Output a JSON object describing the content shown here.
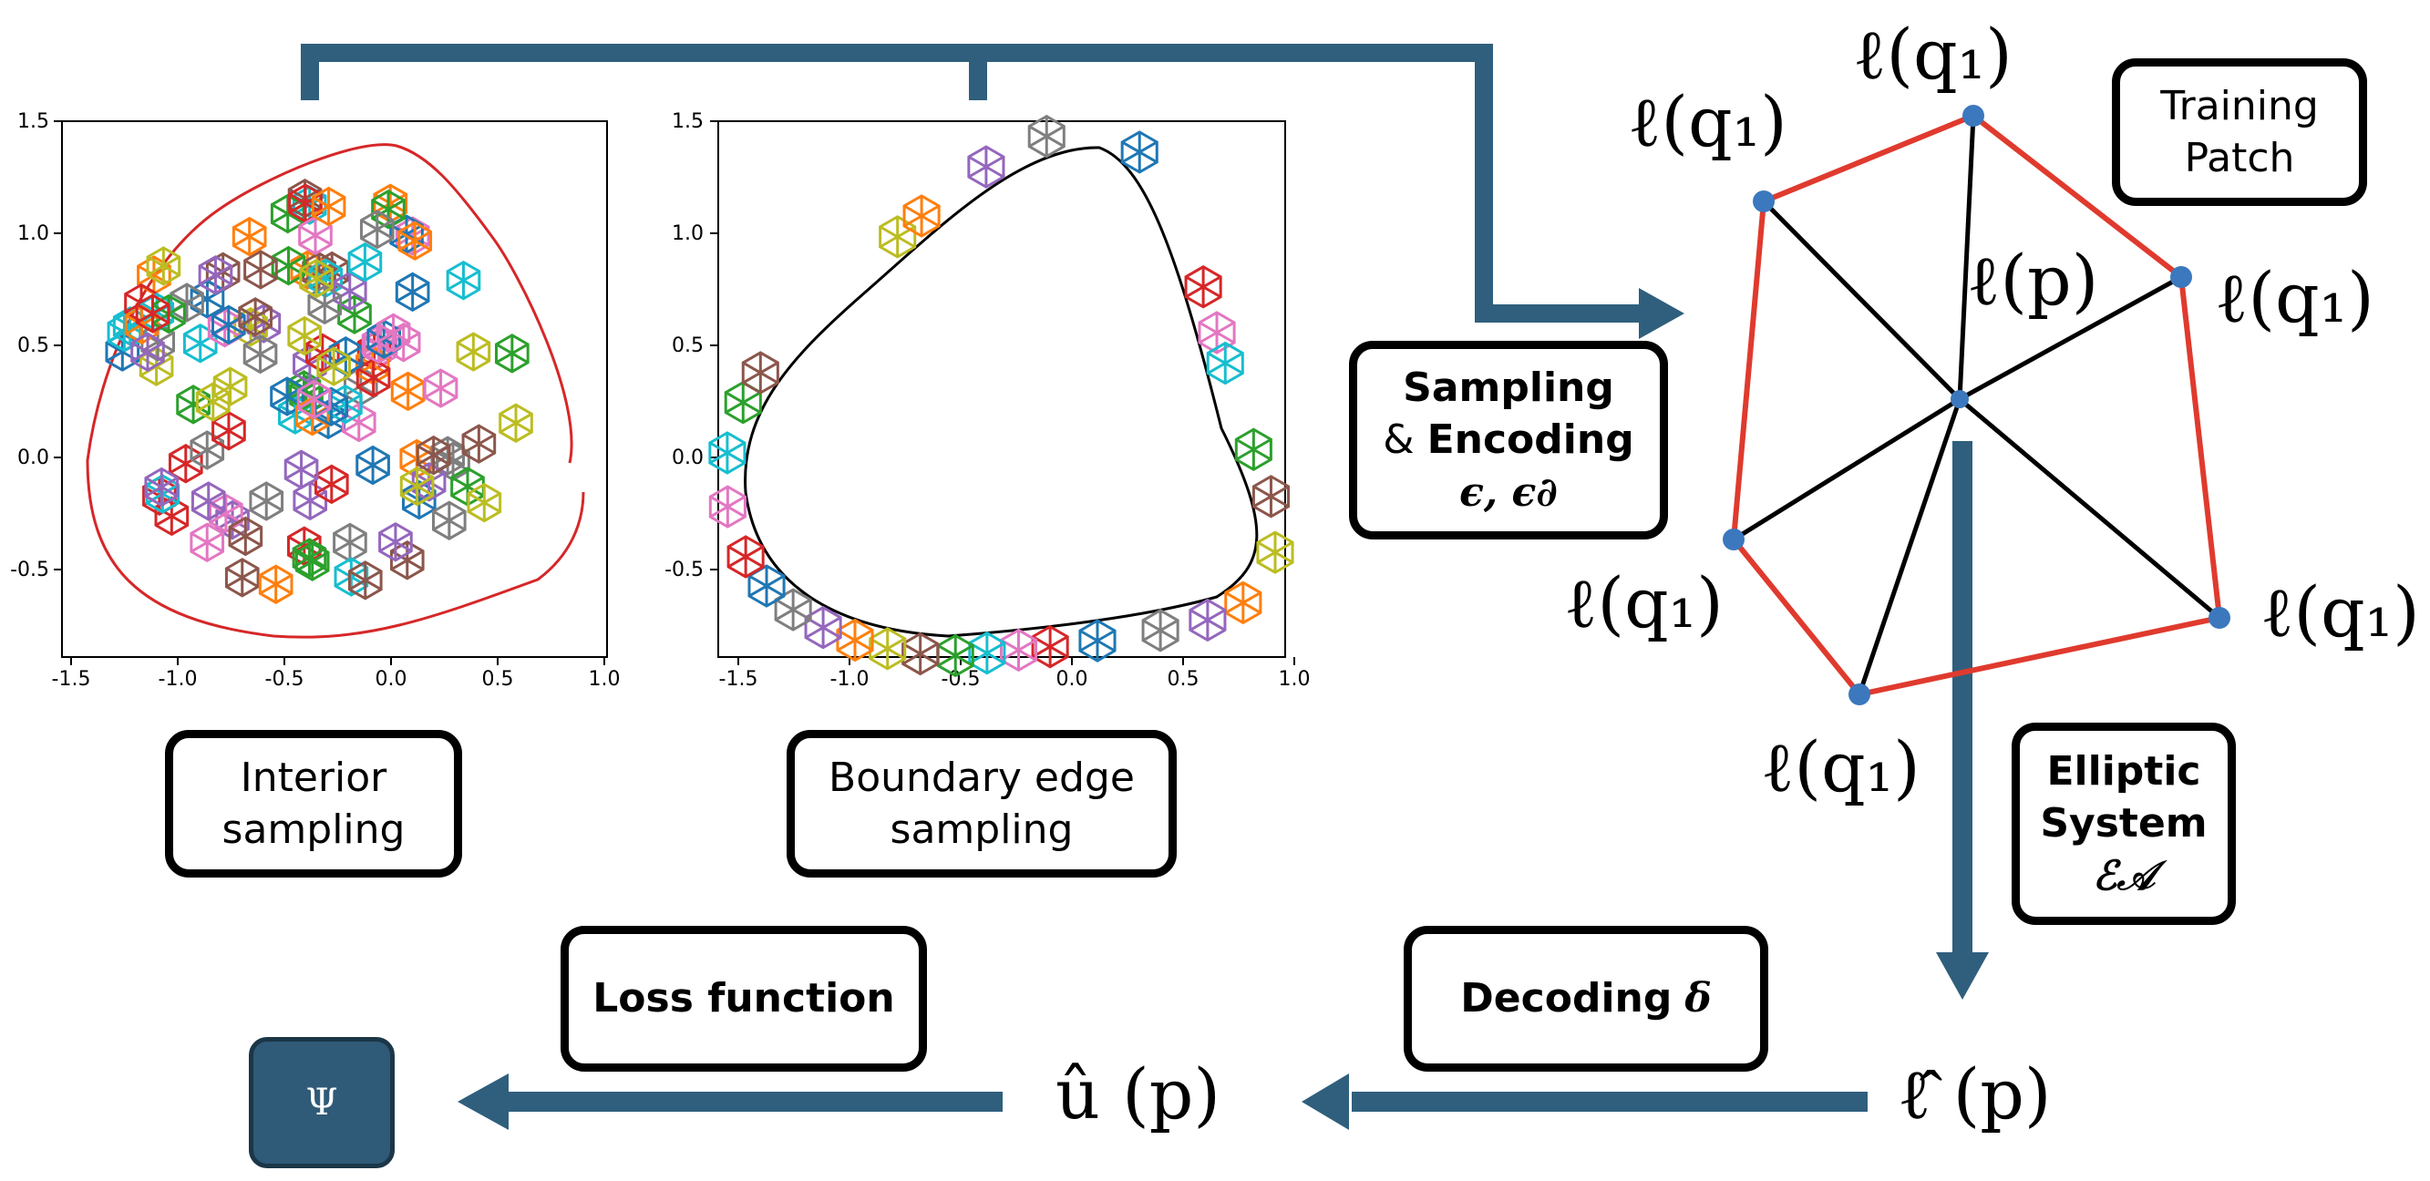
{
  "plots": {
    "left": {
      "x_ticks": [
        "-1.5",
        "-1.0",
        "-0.5",
        "0.0",
        "0.5",
        "1.0"
      ],
      "y_ticks": [
        "1.5",
        "1.0",
        "0.5",
        "0.0",
        "-0.5"
      ],
      "boundary_color": "#d62728"
    },
    "right": {
      "x_ticks": [
        "-1.5",
        "-1.0",
        "-0.5",
        "0.0",
        "0.5",
        "1.0"
      ],
      "y_ticks": [
        "1.5",
        "1.0",
        "0.5",
        "0.0",
        "-0.5"
      ],
      "boundary_color": "#000000"
    }
  },
  "boxes": {
    "interior": [
      "Interior",
      "sampling"
    ],
    "boundary": [
      "Boundary edge",
      "sampling"
    ],
    "training": [
      "Training",
      "Patch"
    ],
    "sampling": {
      "line1": "Sampling",
      "line2_prefix": "& ",
      "line2_bold": "Encoding",
      "symbols": "ϵ, ϵ∂"
    },
    "elliptic": {
      "line1": "Elliptic",
      "line2": "System",
      "symbol": "ℰ𝒜"
    },
    "decoding": {
      "label": "Decoding",
      "symbol": "δ"
    },
    "loss": "Loss function"
  },
  "patch": {
    "center_label": "ℓ(p)",
    "vertex_label": "ℓ(q₁)",
    "edge_color": "#e03a2e",
    "spoke_color": "#000000",
    "node_color": "#3b78bd"
  },
  "outputs": {
    "l_hat": "ℓ̂ (p)",
    "u_hat": "û (p)",
    "psi": "Ψ"
  },
  "colors": {
    "arrow": "#2f5f7d",
    "psi_fill": "#2f5a78"
  }
}
